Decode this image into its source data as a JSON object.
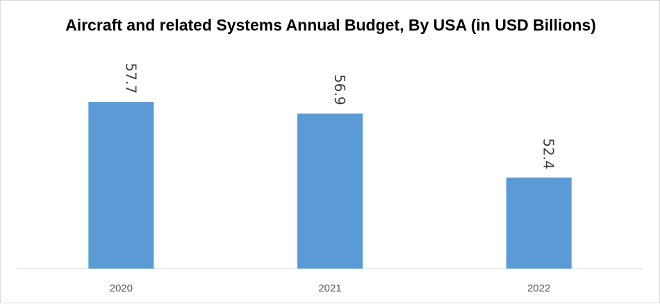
{
  "chart_data": {
    "type": "bar",
    "title": "Aircraft and related Systems Annual Budget, By USA (in USD Billions)",
    "xlabel": "",
    "ylabel": "",
    "categories": [
      "2020",
      "2021",
      "2022"
    ],
    "values": [
      57.7,
      56.9,
      52.4
    ],
    "value_labels": [
      "57.7",
      "56.9",
      "52.4"
    ],
    "ylim": [
      46,
      58
    ],
    "grid": false,
    "legend": "none",
    "bar_color": "#5b9bd5",
    "axis_color": "#d9d9d9"
  }
}
